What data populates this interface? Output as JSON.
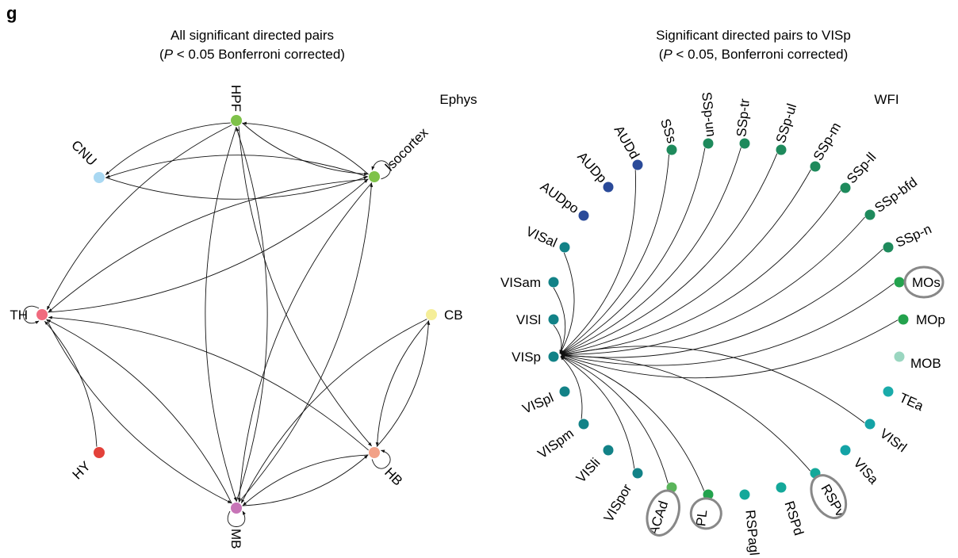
{
  "panel_letter": "g",
  "left": {
    "title_line1": "All significant directed pairs",
    "title_line2": "(P < 0.05 Bonferroni corrected)",
    "title_italic": "P",
    "title_rest": " < 0.05 Bonferroni corrected)",
    "tag": "Ephys",
    "nodes": [
      {
        "id": "HPF",
        "label": "HPF",
        "color": "#7fc24a"
      },
      {
        "id": "CNU",
        "label": "CNU",
        "color": "#a9d8f2"
      },
      {
        "id": "Isocortex",
        "label": "Isocortex",
        "color": "#7fc24a"
      },
      {
        "id": "TH",
        "label": "TH",
        "color": "#f06a7e"
      },
      {
        "id": "CB",
        "label": "CB",
        "color": "#f5ee98"
      },
      {
        "id": "HB",
        "label": "HB",
        "color": "#f2a187"
      },
      {
        "id": "HY",
        "label": "HY",
        "color": "#e3413a"
      },
      {
        "id": "MB",
        "label": "MB",
        "color": "#c774b7"
      }
    ],
    "edges": [
      [
        "HPF",
        "CNU"
      ],
      [
        "HPF",
        "TH"
      ],
      [
        "HPF",
        "MB"
      ],
      [
        "HPF",
        "HB"
      ],
      [
        "HPF",
        "Isocortex"
      ],
      [
        "Isocortex",
        "HPF"
      ],
      [
        "Isocortex",
        "CNU"
      ],
      [
        "Isocortex",
        "TH"
      ],
      [
        "Isocortex",
        "MB"
      ],
      [
        "CNU",
        "Isocortex"
      ],
      [
        "TH",
        "Isocortex"
      ],
      [
        "TH",
        "MB"
      ],
      [
        "MB",
        "TH"
      ],
      [
        "MB",
        "HPF"
      ],
      [
        "MB",
        "Isocortex"
      ],
      [
        "MB",
        "HB"
      ],
      [
        "HB",
        "MB"
      ],
      [
        "HB",
        "TH"
      ],
      [
        "CB",
        "MB"
      ],
      [
        "CB",
        "HB"
      ],
      [
        "HB",
        "CB"
      ],
      [
        "HY",
        "TH"
      ],
      [
        "Isocortex",
        "Isocortex"
      ],
      [
        "TH",
        "TH"
      ],
      [
        "HB",
        "HB"
      ],
      [
        "MB",
        "MB"
      ]
    ]
  },
  "right": {
    "title_line1": "Significant directed pairs to VISp",
    "title_line2": "(P < 0.05, Bonferroni corrected)",
    "title_italic": "P",
    "title_rest": " < 0.05, Bonferroni corrected)",
    "tag": "WFI",
    "target": "VISp",
    "nodes": [
      {
        "id": "AUDpo",
        "label": "AUDpo",
        "color": "#2a4a99",
        "source": false
      },
      {
        "id": "AUDp",
        "label": "AUDp",
        "color": "#2a4a99",
        "source": false
      },
      {
        "id": "AUDd",
        "label": "AUDd",
        "color": "#2a4a99",
        "source": true
      },
      {
        "id": "SSs",
        "label": "SSs",
        "color": "#1e8a5c",
        "source": true
      },
      {
        "id": "SSp-un",
        "label": "SSp-un",
        "color": "#1e8a5c",
        "source": true
      },
      {
        "id": "SSp-tr",
        "label": "SSp-tr",
        "color": "#1e8a5c",
        "source": true
      },
      {
        "id": "SSp-ul",
        "label": "SSp-ul",
        "color": "#1e8a5c",
        "source": true
      },
      {
        "id": "SSp-m",
        "label": "SSp-m",
        "color": "#1e8a5c",
        "source": true
      },
      {
        "id": "SSp-ll",
        "label": "SSp-ll",
        "color": "#1e8a5c",
        "source": true
      },
      {
        "id": "SSp-bfd",
        "label": "SSp-bfd",
        "color": "#1e8a5c",
        "source": true
      },
      {
        "id": "SSp-n",
        "label": "SSp-n",
        "color": "#1e8a5c",
        "source": true
      },
      {
        "id": "MOs",
        "label": "MOs",
        "color": "#23a24d",
        "source": true,
        "circled": true
      },
      {
        "id": "MOp",
        "label": "MOp",
        "color": "#23a24d",
        "source": true
      },
      {
        "id": "MOB",
        "label": "MOB",
        "color": "#9ad6c0",
        "source": false
      },
      {
        "id": "TEa",
        "label": "TEa",
        "color": "#1aabaa",
        "source": false
      },
      {
        "id": "VISrl",
        "label": "VISrl",
        "color": "#14a3a6",
        "source": true
      },
      {
        "id": "VISa",
        "label": "VISa",
        "color": "#14a3a6",
        "source": false
      },
      {
        "id": "RSPv",
        "label": "RSPv",
        "color": "#14a89a",
        "source": true,
        "circled": true
      },
      {
        "id": "RSPd",
        "label": "RSPd",
        "color": "#14a89a",
        "source": false
      },
      {
        "id": "RSPagl",
        "label": "RSPagl",
        "color": "#14a89a",
        "source": false
      },
      {
        "id": "PL",
        "label": "PL",
        "color": "#23a24d",
        "source": true,
        "circled": true
      },
      {
        "id": "ACAd",
        "label": "ACAd",
        "color": "#5ab45a",
        "source": true,
        "circled": true
      },
      {
        "id": "VISpor",
        "label": "VISpor",
        "color": "#128287",
        "source": true
      },
      {
        "id": "VISli",
        "label": "VISli",
        "color": "#128287",
        "source": false
      },
      {
        "id": "VISpm",
        "label": "VISpm",
        "color": "#128287",
        "source": true
      },
      {
        "id": "VISpl",
        "label": "VISpl",
        "color": "#128287",
        "source": false
      },
      {
        "id": "VISp",
        "label": "VISp",
        "color": "#128287",
        "source": false
      },
      {
        "id": "VISl",
        "label": "VISl",
        "color": "#128287",
        "source": true
      },
      {
        "id": "VISam",
        "label": "VISam",
        "color": "#128287",
        "source": true
      },
      {
        "id": "VISal",
        "label": "VISal",
        "color": "#128287",
        "source": true
      }
    ]
  }
}
